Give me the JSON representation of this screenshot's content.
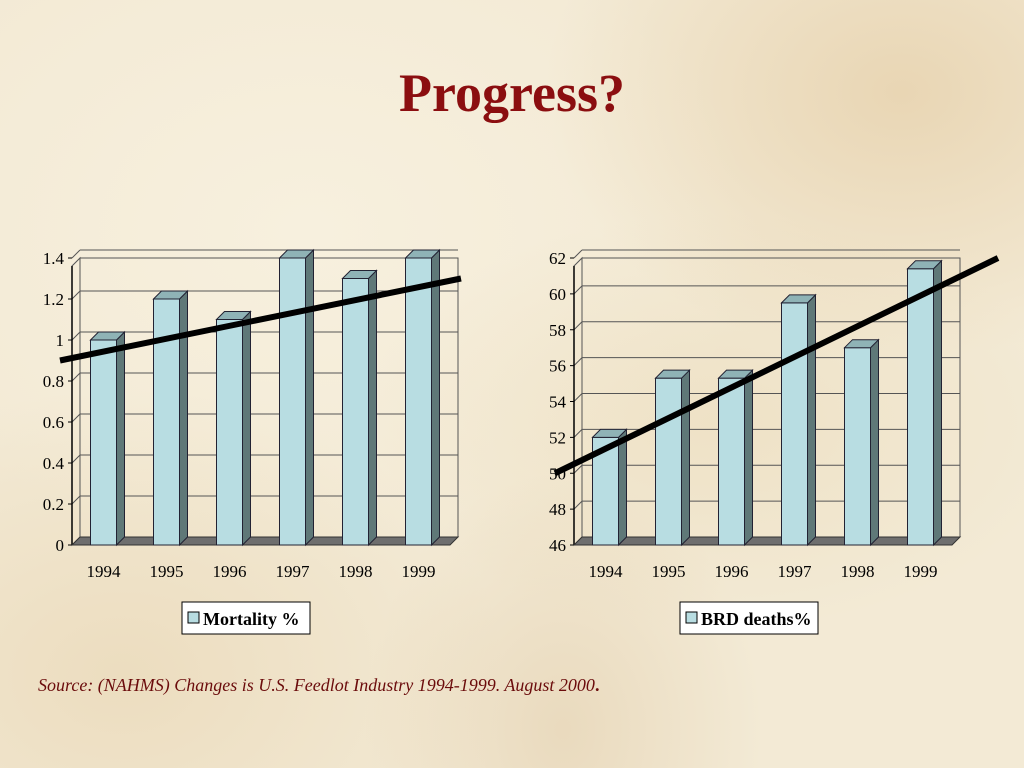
{
  "slide": {
    "title": "Progress?",
    "source": "Source: (NAHMS) Changes is U.S. Feedlot Industry 1994-1999. August 2000",
    "source_end": "."
  },
  "colors": {
    "title": "#8b0e10",
    "bar_front": "#b8dde2",
    "bar_side": "#5f7878",
    "bar_top": "#8fb3b6",
    "trend_line": "#000000",
    "floor": "#6e6e6e"
  },
  "chart_data": [
    {
      "type": "bar",
      "categories": [
        "1994",
        "1995",
        "1996",
        "1997",
        "1998",
        "1999"
      ],
      "series": [
        {
          "name": "Mortality %",
          "values": [
            1.0,
            1.2,
            1.1,
            1.4,
            1.3,
            1.4
          ]
        }
      ],
      "yticks": [
        "0",
        "0.2",
        "0.4",
        "0.6",
        "0.8",
        "1",
        "1.2",
        "1.4"
      ],
      "ylim": [
        0,
        1.4
      ],
      "trendline": {
        "y_start": 0.9,
        "y_end": 1.3
      },
      "grid": true,
      "legend": "bottom-center",
      "title": "",
      "xlabel": "",
      "ylabel": ""
    },
    {
      "type": "bar",
      "categories": [
        "1994",
        "1995",
        "1996",
        "1997",
        "1998",
        "1999"
      ],
      "series": [
        {
          "name": "BRD deaths%",
          "values": [
            52.0,
            55.3,
            55.3,
            59.5,
            57.0,
            61.4
          ]
        }
      ],
      "yticks": [
        "46",
        "48",
        "50",
        "52",
        "54",
        "56",
        "58",
        "60",
        "62"
      ],
      "ylim": [
        46,
        62
      ],
      "trendline": {
        "y_start": 50.0,
        "y_end": 62.0
      },
      "grid": true,
      "legend": "bottom-center",
      "title": "",
      "xlabel": "",
      "ylabel": ""
    }
  ]
}
